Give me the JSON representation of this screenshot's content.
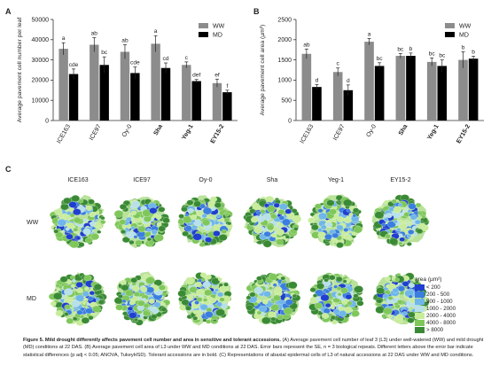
{
  "panel_letters": {
    "a": "A",
    "b": "B",
    "c": "C"
  },
  "legend": {
    "ww": "WW",
    "md": "MD",
    "ww_color": "#8c8c8c",
    "md_color": "#000000"
  },
  "chart_data": [
    {
      "type": "bar",
      "panel": "A",
      "ylabel": "Average pavement cell number per leaf",
      "ylim": [
        0,
        50000
      ],
      "yticks": [
        "0",
        "10000",
        "20000",
        "30000",
        "40000",
        "50000"
      ],
      "categories": [
        "ICE163",
        "ICE97",
        "Oy-0",
        "Sha",
        "Yeg-1",
        "EY15-2"
      ],
      "bold_categories": [
        "Sha",
        "Yeg-1",
        "EY15-2"
      ],
      "series": [
        {
          "name": "WW",
          "values": [
            35500,
            37500,
            34000,
            38000,
            27500,
            18500
          ],
          "errors": [
            3000,
            3500,
            3500,
            4000,
            1500,
            2000
          ]
        },
        {
          "name": "MD",
          "values": [
            23000,
            27500,
            23500,
            26000,
            19500,
            14000
          ],
          "errors": [
            2500,
            4000,
            3000,
            2500,
            800,
            1000
          ]
        }
      ],
      "letters": [
        [
          "a",
          "cde"
        ],
        [
          "ab",
          "bc"
        ],
        [
          "ab",
          "cde"
        ],
        [
          "a",
          "cd"
        ],
        [
          "c",
          "def"
        ],
        [
          "ef",
          "f"
        ]
      ]
    },
    {
      "type": "bar",
      "panel": "B",
      "ylabel": "Average pavement cell area (µm²)",
      "ylim": [
        0,
        2500
      ],
      "yticks": [
        "0",
        "500",
        "1000",
        "1500",
        "2000",
        "2500"
      ],
      "categories": [
        "ICE163",
        "ICE97",
        "Oy-0",
        "Sha",
        "Yeg-1",
        "EY15-2"
      ],
      "bold_categories": [
        "Sha",
        "Yeg-1",
        "EY15-2"
      ],
      "series": [
        {
          "name": "WW",
          "values": [
            1650,
            1200,
            1950,
            1600,
            1450,
            1500
          ],
          "errors": [
            120,
            100,
            80,
            60,
            100,
            200
          ]
        },
        {
          "name": "MD",
          "values": [
            830,
            750,
            1350,
            1600,
            1350,
            1530
          ],
          "errors": [
            60,
            130,
            80,
            70,
            150,
            60
          ]
        }
      ],
      "letters": [
        [
          "ab",
          "d"
        ],
        [
          "c",
          "d"
        ],
        [
          "a",
          "bc"
        ],
        [
          "bc",
          "b"
        ],
        [
          "bc",
          "bc"
        ],
        [
          "b",
          "b"
        ]
      ]
    }
  ],
  "panel_c": {
    "columns": [
      "ICE163",
      "ICE97",
      "Oy-0",
      "Sha",
      "Yeg-1",
      "EY15-2"
    ],
    "rows": [
      "WW",
      "MD"
    ],
    "legend_title": "area (µm²)",
    "legend_items": [
      {
        "label": "< 200",
        "color": "#1f3fd0"
      },
      {
        "label": "200 - 500",
        "color": "#3a7ee0"
      },
      {
        "label": "500 - 1000",
        "color": "#6fb6ea"
      },
      {
        "label": "1000 - 2000",
        "color": "#b7e0ea"
      },
      {
        "label": "2000 - 4000",
        "color": "#c8ec9a"
      },
      {
        "label": "4000 - 8000",
        "color": "#7fc75a"
      },
      {
        "label": "> 8000",
        "color": "#3a8a35"
      }
    ]
  },
  "caption": {
    "title": "Figure 5. Mild drought differently affects pavement cell number and area in sensitive and tolerant accessions.",
    "body": " (A) Average pavement cell number of leaf 3 (L3) under well-watered (WW) and mild drought (MD) conditions at 22 DAS. (B) Average pavement cell area of L3 under WW and MD conditions at 22 DAS. Error bars represent the SE, n = 3 biological repeats. Different letters above the error bar indicate statistical differences (p adj < 0.05; ANOVA, TukeyHSD). Tolerant accessions are in bold. (C) Representations of abaxial epidermal cells of L3 of natural accessions at 22 DAS under WW and MD conditions."
  }
}
